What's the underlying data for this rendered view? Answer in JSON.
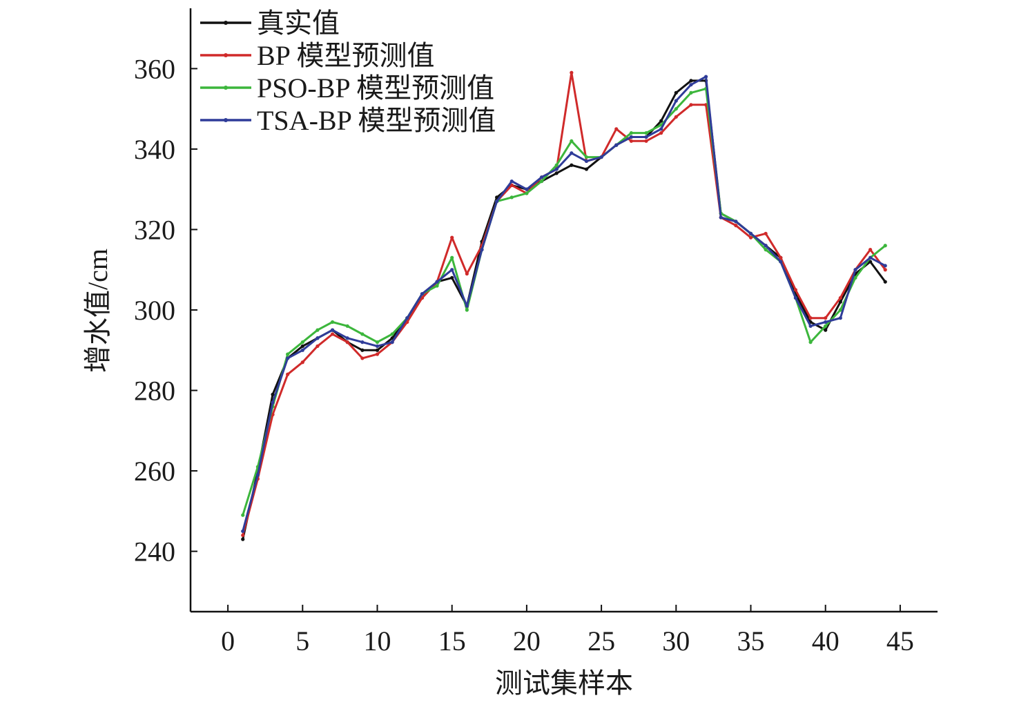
{
  "chart_data": {
    "type": "line",
    "title": "",
    "xlabel": "测试集样本",
    "ylabel": "增水值/cm",
    "xlim": [
      -2.5,
      47.5
    ],
    "ylim": [
      225,
      375
    ],
    "x_ticks": [
      0,
      5,
      10,
      15,
      20,
      25,
      30,
      35,
      40,
      45
    ],
    "y_ticks": [
      240,
      260,
      280,
      300,
      320,
      340,
      360
    ],
    "grid": false,
    "legend_position": "top-left",
    "x": [
      1,
      2,
      3,
      4,
      5,
      6,
      7,
      8,
      9,
      10,
      11,
      12,
      13,
      14,
      15,
      16,
      17,
      18,
      19,
      20,
      21,
      22,
      23,
      24,
      25,
      26,
      27,
      28,
      29,
      30,
      31,
      32,
      33,
      34,
      35,
      36,
      37,
      38,
      39,
      40,
      41,
      42,
      43,
      44
    ],
    "series": [
      {
        "name": "真实值",
        "color": "#111111",
        "values": [
          243,
          260,
          279,
          288,
          291,
          293,
          295,
          292,
          290,
          290,
          293,
          298,
          303,
          307,
          308,
          301,
          317,
          328,
          331,
          330,
          332,
          334,
          336,
          335,
          338,
          341,
          343,
          343,
          347,
          354,
          357,
          357,
          324,
          322,
          319,
          316,
          313,
          304,
          297,
          295,
          302,
          309,
          312,
          307
        ]
      },
      {
        "name": "BP 模型预测值",
        "color": "#d02a2a",
        "values": [
          244,
          258,
          274,
          284,
          287,
          291,
          294,
          292,
          288,
          289,
          292,
          297,
          303,
          307,
          318,
          309,
          316,
          327,
          331,
          329,
          333,
          335,
          359,
          337,
          338,
          345,
          342,
          342,
          344,
          348,
          351,
          351,
          323,
          321,
          318,
          319,
          313,
          305,
          298,
          298,
          303,
          310,
          315,
          310
        ]
      },
      {
        "name": "PSO-BP 模型预测值",
        "color": "#3cb63c",
        "values": [
          249,
          261,
          276,
          289,
          292,
          295,
          297,
          296,
          294,
          292,
          294,
          298,
          304,
          306,
          313,
          300,
          315,
          327,
          328,
          329,
          332,
          336,
          342,
          338,
          338,
          341,
          344,
          344,
          346,
          350,
          354,
          355,
          324,
          322,
          319,
          315,
          312,
          303,
          292,
          296,
          300,
          308,
          313,
          316
        ]
      },
      {
        "name": "TSA-BP 模型预测值",
        "color": "#2f3c99",
        "values": [
          245,
          259,
          277,
          288,
          290,
          293,
          295,
          293,
          292,
          291,
          292,
          298,
          304,
          307,
          310,
          301,
          315,
          327,
          332,
          330,
          333,
          335,
          339,
          337,
          338,
          341,
          343,
          343,
          345,
          352,
          356,
          358,
          323,
          322,
          319,
          316,
          312,
          303,
          296,
          297,
          298,
          310,
          313,
          311
        ]
      }
    ]
  }
}
